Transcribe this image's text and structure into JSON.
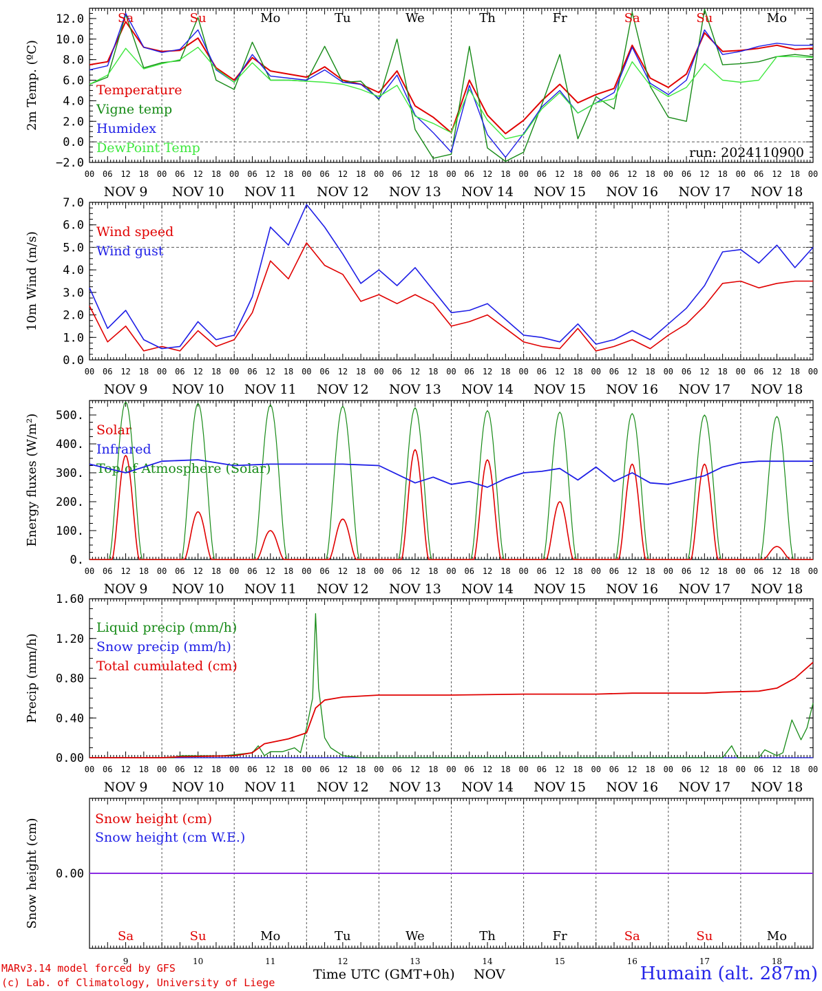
{
  "chart_data": [
    {
      "type": "line",
      "ylabel": "2m Temp. (ºC)",
      "ylim": [
        -2,
        13
      ],
      "yticks": [
        "−2.0",
        "0.0",
        "2.0",
        "4.0",
        "6.0",
        "8.0",
        "10.0",
        "12.0"
      ],
      "annotation": "run: 2024110900",
      "legend": [
        "Temperature",
        "Vigne temp",
        "Humidex",
        "DewPoint Temp"
      ],
      "colors": [
        "#e00000",
        "#168a16",
        "#1e1ee6",
        "#3ee83e"
      ],
      "x_hours": [
        0,
        6,
        12,
        18,
        24,
        30,
        36,
        42,
        48,
        54,
        60,
        66,
        72,
        78,
        84,
        90,
        96,
        102,
        108,
        114,
        120,
        126,
        132,
        138,
        144,
        150,
        156,
        162,
        168,
        174,
        180,
        186,
        192,
        198,
        204,
        210,
        216,
        222,
        228,
        234,
        240
      ],
      "series": [
        {
          "name": "Temperature",
          "values": [
            7.5,
            7.8,
            11.7,
            9.2,
            8.8,
            8.9,
            10.1,
            7.2,
            6.0,
            8.2,
            6.9,
            6.6,
            6.3,
            7.3,
            6.0,
            5.6,
            4.8,
            6.9,
            3.5,
            2.4,
            0.9,
            6.0,
            2.6,
            0.8,
            2.1,
            4.0,
            5.6,
            3.8,
            4.6,
            5.2,
            9.4,
            6.2,
            5.3,
            6.6,
            10.6,
            8.8,
            8.9,
            9.1,
            9.4,
            9.0,
            9.1
          ]
        },
        {
          "name": "Vigne temp",
          "values": [
            5.6,
            6.3,
            12.4,
            7.2,
            7.7,
            7.9,
            12.1,
            6.0,
            5.1,
            9.7,
            6.0,
            6.0,
            5.9,
            9.3,
            5.8,
            5.9,
            4.1,
            10.0,
            1.2,
            -1.6,
            -1.2,
            9.3,
            -0.6,
            -1.9,
            -1.0,
            3.6,
            8.5,
            0.3,
            4.4,
            3.2,
            12.6,
            5.4,
            2.4,
            2.0,
            12.9,
            7.5,
            7.6,
            7.8,
            8.3,
            8.5,
            8.3
          ]
        },
        {
          "name": "Humidex",
          "values": [
            7.0,
            7.4,
            12.5,
            9.2,
            8.7,
            9.0,
            10.9,
            7.0,
            5.8,
            8.5,
            6.4,
            6.2,
            6.0,
            7.0,
            5.8,
            5.6,
            4.2,
            6.5,
            2.6,
            0.9,
            -1.0,
            5.5,
            0.7,
            -1.5,
            0.8,
            3.4,
            5.0,
            2.8,
            3.8,
            4.8,
            9.2,
            5.7,
            4.6,
            6.0,
            10.9,
            8.5,
            8.8,
            9.3,
            9.6,
            9.4,
            9.4
          ]
        },
        {
          "name": "DewPoint Temp",
          "values": [
            5.6,
            6.5,
            9.1,
            7.1,
            7.6,
            8.0,
            9.2,
            7.1,
            5.8,
            7.7,
            6.0,
            6.0,
            5.9,
            5.8,
            5.6,
            5.1,
            4.4,
            5.5,
            2.5,
            1.8,
            0.9,
            5.1,
            2.1,
            0.3,
            0.7,
            3.2,
            4.8,
            2.8,
            3.8,
            4.2,
            7.8,
            5.5,
            4.4,
            5.3,
            7.6,
            6.0,
            5.8,
            6.0,
            8.3,
            8.3,
            8.2
          ]
        }
      ],
      "day_labels": [
        "NOV  9",
        "NOV 10",
        "NOV 11",
        "NOV 12",
        "NOV 13",
        "NOV 14",
        "NOV 15",
        "NOV 16",
        "NOV 17",
        "NOV 18"
      ],
      "weekdays": [
        "Sa",
        "Su",
        "Mo",
        "Tu",
        "We",
        "Th",
        "Fr",
        "Sa",
        "Su",
        "Mo"
      ],
      "weekday_colors": [
        "#e00000",
        "#e00000",
        "#000000",
        "#000000",
        "#000000",
        "#000000",
        "#000000",
        "#e00000",
        "#e00000",
        "#000000"
      ]
    },
    {
      "type": "line",
      "ylabel": "10m Wind (m/s)",
      "ylim": [
        0,
        7
      ],
      "yticks": [
        "0.0",
        "1.0",
        "2.0",
        "3.0",
        "4.0",
        "5.0",
        "6.0",
        "7.0"
      ],
      "ref_line": 5,
      "legend": [
        "Wind speed",
        "Wind gust"
      ],
      "colors": [
        "#e00000",
        "#1e1ee6"
      ],
      "x_hours": [
        0,
        6,
        12,
        18,
        24,
        30,
        36,
        42,
        48,
        54,
        60,
        66,
        72,
        78,
        84,
        90,
        96,
        102,
        108,
        114,
        120,
        126,
        132,
        138,
        144,
        150,
        156,
        162,
        168,
        174,
        180,
        186,
        192,
        198,
        204,
        210,
        216,
        222,
        228,
        234,
        240
      ],
      "series": [
        {
          "name": "Wind speed",
          "values": [
            2.4,
            0.8,
            1.5,
            0.4,
            0.6,
            0.4,
            1.3,
            0.6,
            0.9,
            2.1,
            4.4,
            3.6,
            5.2,
            4.2,
            3.8,
            2.6,
            2.9,
            2.5,
            2.9,
            2.5,
            1.5,
            1.7,
            2.0,
            1.4,
            0.8,
            0.6,
            0.5,
            1.4,
            0.4,
            0.6,
            0.9,
            0.5,
            1.1,
            1.6,
            2.4,
            3.4,
            3.5,
            3.2,
            3.4,
            3.5,
            3.5
          ]
        },
        {
          "name": "Wind gust",
          "values": [
            3.2,
            1.4,
            2.2,
            0.9,
            0.5,
            0.6,
            1.7,
            0.9,
            1.1,
            2.8,
            5.9,
            5.1,
            6.9,
            5.9,
            4.7,
            3.4,
            4.0,
            3.3,
            4.1,
            3.1,
            2.1,
            2.2,
            2.5,
            1.8,
            1.1,
            1.0,
            0.8,
            1.6,
            0.7,
            0.9,
            1.3,
            0.9,
            1.6,
            2.3,
            3.3,
            4.8,
            4.9,
            4.3,
            5.1,
            4.1,
            5.0
          ]
        }
      ]
    },
    {
      "type": "line",
      "ylabel": "Energy fluxes (W/m²)",
      "ylim": [
        0,
        550
      ],
      "yticks": [
        "0.",
        "100.",
        "200.",
        "300.",
        "400.",
        "500."
      ],
      "legend": [
        "Solar",
        "Infrared",
        "Top of Atmosphere (Solar)"
      ],
      "colors": [
        "#e00000",
        "#1e1ee6",
        "#168a16"
      ],
      "solar_peaks": [
        360,
        165,
        100,
        140,
        380,
        345,
        200,
        330,
        330,
        45
      ],
      "toa_peaks": [
        545,
        540,
        535,
        530,
        525,
        515,
        510,
        505,
        500,
        495
      ],
      "infrared": [
        {
          "h": 0,
          "v": 330
        },
        {
          "h": 12,
          "v": 300
        },
        {
          "h": 24,
          "v": 340
        },
        {
          "h": 36,
          "v": 345
        },
        {
          "h": 48,
          "v": 325
        },
        {
          "h": 60,
          "v": 330
        },
        {
          "h": 72,
          "v": 330
        },
        {
          "h": 84,
          "v": 330
        },
        {
          "h": 96,
          "v": 325
        },
        {
          "h": 108,
          "v": 265
        },
        {
          "h": 114,
          "v": 285
        },
        {
          "h": 120,
          "v": 260
        },
        {
          "h": 126,
          "v": 270
        },
        {
          "h": 132,
          "v": 250
        },
        {
          "h": 138,
          "v": 280
        },
        {
          "h": 144,
          "v": 300
        },
        {
          "h": 150,
          "v": 305
        },
        {
          "h": 156,
          "v": 315
        },
        {
          "h": 162,
          "v": 275
        },
        {
          "h": 168,
          "v": 320
        },
        {
          "h": 174,
          "v": 270
        },
        {
          "h": 180,
          "v": 300
        },
        {
          "h": 186,
          "v": 265
        },
        {
          "h": 192,
          "v": 260
        },
        {
          "h": 198,
          "v": 275
        },
        {
          "h": 204,
          "v": 290
        },
        {
          "h": 210,
          "v": 320
        },
        {
          "h": 216,
          "v": 335
        },
        {
          "h": 222,
          "v": 340
        },
        {
          "h": 228,
          "v": 340
        },
        {
          "h": 234,
          "v": 340
        },
        {
          "h": 240,
          "v": 340
        }
      ]
    },
    {
      "type": "line",
      "ylabel": "Precip (mm/h)",
      "ylim": [
        0,
        1.6
      ],
      "yticks": [
        "0.00",
        "0.40",
        "0.80",
        "1.20",
        "1.60"
      ],
      "legend": [
        "Liquid precip (mm/h)",
        "Snow precip (mm/h)",
        "Total cumulated (cm)"
      ],
      "colors": [
        "#168a16",
        "#1e1ee6",
        "#e00000"
      ],
      "liquid": [
        {
          "h": 0,
          "v": 0
        },
        {
          "h": 28,
          "v": 0
        },
        {
          "h": 30,
          "v": 0.02
        },
        {
          "h": 44,
          "v": 0.02
        },
        {
          "h": 48,
          "v": 0.03
        },
        {
          "h": 54,
          "v": 0.05
        },
        {
          "h": 56,
          "v": 0.12
        },
        {
          "h": 58,
          "v": 0.02
        },
        {
          "h": 60,
          "v": 0.06
        },
        {
          "h": 64,
          "v": 0.06
        },
        {
          "h": 68,
          "v": 0.1
        },
        {
          "h": 70,
          "v": 0.05
        },
        {
          "h": 72,
          "v": 0.3
        },
        {
          "h": 74,
          "v": 0.6
        },
        {
          "h": 75,
          "v": 1.45
        },
        {
          "h": 76,
          "v": 0.7
        },
        {
          "h": 78,
          "v": 0.2
        },
        {
          "h": 80,
          "v": 0.1
        },
        {
          "h": 84,
          "v": 0.02
        },
        {
          "h": 90,
          "v": 0
        },
        {
          "h": 210,
          "v": 0
        },
        {
          "h": 213,
          "v": 0.12
        },
        {
          "h": 215,
          "v": 0
        },
        {
          "h": 222,
          "v": 0
        },
        {
          "h": 224,
          "v": 0.08
        },
        {
          "h": 228,
          "v": 0.02
        },
        {
          "h": 230,
          "v": 0.05
        },
        {
          "h": 233,
          "v": 0.38
        },
        {
          "h": 236,
          "v": 0.18
        },
        {
          "h": 238,
          "v": 0.3
        },
        {
          "h": 240,
          "v": 0.55
        }
      ],
      "total": [
        {
          "h": 0,
          "v": 0
        },
        {
          "h": 24,
          "v": 0
        },
        {
          "h": 30,
          "v": 0.01
        },
        {
          "h": 48,
          "v": 0.02
        },
        {
          "h": 54,
          "v": 0.05
        },
        {
          "h": 58,
          "v": 0.14
        },
        {
          "h": 66,
          "v": 0.19
        },
        {
          "h": 72,
          "v": 0.25
        },
        {
          "h": 75,
          "v": 0.5
        },
        {
          "h": 78,
          "v": 0.58
        },
        {
          "h": 84,
          "v": 0.61
        },
        {
          "h": 96,
          "v": 0.63
        },
        {
          "h": 120,
          "v": 0.63
        },
        {
          "h": 144,
          "v": 0.64
        },
        {
          "h": 168,
          "v": 0.64
        },
        {
          "h": 180,
          "v": 0.65
        },
        {
          "h": 204,
          "v": 0.65
        },
        {
          "h": 210,
          "v": 0.66
        },
        {
          "h": 222,
          "v": 0.67
        },
        {
          "h": 228,
          "v": 0.7
        },
        {
          "h": 234,
          "v": 0.8
        },
        {
          "h": 240,
          "v": 0.96
        }
      ]
    },
    {
      "type": "line",
      "ylabel": "Snow height (cm)",
      "yticks": [
        "0.00"
      ],
      "legend": [
        "Snow height (cm)",
        "Snow height (cm W.E.)"
      ],
      "colors": [
        "#e00000",
        "#1e1ee6"
      ],
      "line_color": "#8a2be2"
    }
  ],
  "xaxis": {
    "hour_labels": [
      "00",
      "06",
      "12",
      "18"
    ],
    "last_hour_label": "00",
    "bottom_days": [
      "9",
      "10",
      "11",
      "12",
      "13",
      "14",
      "15",
      "16",
      "17",
      "18"
    ],
    "title": "Time UTC (GMT+0h)",
    "month": "NOV"
  },
  "footer": {
    "line1": "MARv3.14 model forced by GFS",
    "line2": "(c) Lab. of Climatology, University of Liege",
    "place": "Humain (alt. 287m)"
  }
}
